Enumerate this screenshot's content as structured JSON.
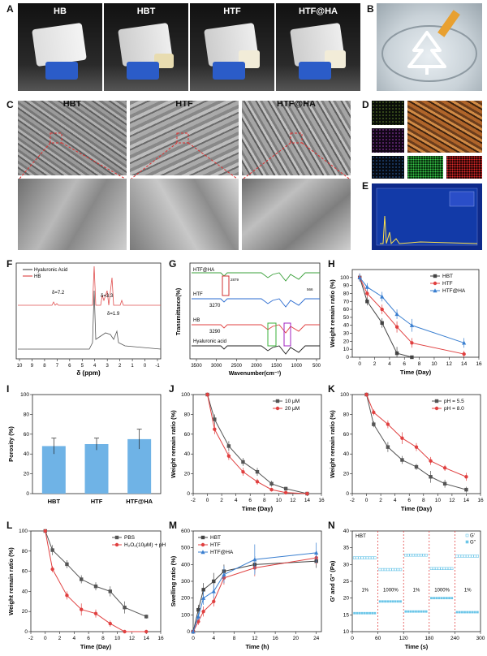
{
  "panel_labels": [
    "A",
    "B",
    "C",
    "D",
    "E",
    "F",
    "G",
    "H",
    "I",
    "J",
    "K",
    "L",
    "M",
    "N"
  ],
  "photos_A": [
    "HB",
    "HBT",
    "HTF",
    "HTF@HA"
  ],
  "sem_C": [
    "HBT",
    "HTF",
    "HTF@HA"
  ],
  "nmr_F": {
    "legend": [
      "Hyaluronic Acid",
      "HB"
    ],
    "annotations": [
      "δ=7.2",
      "δ=3.3",
      "δ=1.9"
    ],
    "xlabel": "δ (ppm)",
    "xticks": [
      "10",
      "9",
      "8",
      "7",
      "6",
      "5",
      "4",
      "3",
      "2",
      "1",
      "0",
      "-1"
    ],
    "colors": [
      "#555555",
      "#e05050"
    ]
  },
  "ftir_G": {
    "labels": [
      "HTF@HA",
      "HTF",
      "HB",
      "Hyaluronic acid"
    ],
    "annotations": [
      "2879",
      "3270",
      "3290",
      "566"
    ],
    "xlabel": "Wavenumber(cm⁻¹)",
    "ylabel": "Transmittance(%)",
    "xticks": [
      "3500",
      "3000",
      "2500",
      "2000",
      "1500",
      "1000",
      "500"
    ],
    "colors": [
      "#3aa03a",
      "#2a6bd0",
      "#e04040",
      "#222222"
    ]
  },
  "chart_data": [
    {
      "panel": "H",
      "type": "line",
      "xlabel": "Time (Day)",
      "ylabel": "Weight remain ratio (%)",
      "xlim": [
        -1,
        16
      ],
      "ylim": [
        0,
        110
      ],
      "xticks": [
        0,
        2,
        4,
        6,
        8,
        10,
        12,
        14,
        16
      ],
      "yticks": [
        0,
        10,
        20,
        30,
        40,
        50,
        60,
        70,
        80,
        90,
        100
      ],
      "legend_pos": "top-right",
      "series": [
        {
          "name": "HBT",
          "color": "#444444",
          "marker": "square",
          "x": [
            0,
            1,
            3,
            5,
            7
          ],
          "y": [
            100,
            70,
            43,
            5,
            0
          ],
          "err": [
            5,
            5,
            6,
            8,
            1
          ]
        },
        {
          "name": "HTF",
          "color": "#e04040",
          "marker": "circle",
          "x": [
            0,
            1,
            3,
            5,
            7,
            14
          ],
          "y": [
            100,
            80,
            60,
            38,
            18,
            4
          ],
          "err": [
            5,
            5,
            6,
            7,
            6,
            4
          ]
        },
        {
          "name": "HTF@HA",
          "color": "#3a7fd0",
          "marker": "triangle",
          "x": [
            0,
            1,
            3,
            5,
            7,
            14
          ],
          "y": [
            100,
            88,
            76,
            54,
            40,
            18
          ],
          "err": [
            5,
            5,
            6,
            6,
            8,
            6
          ]
        }
      ]
    },
    {
      "panel": "I",
      "type": "bar",
      "ylabel": "Porosity (%)",
      "ylim": [
        0,
        100
      ],
      "yticks": [
        0,
        20,
        40,
        60,
        80,
        100
      ],
      "categories": [
        "HBT",
        "HTF",
        "HTF@HA"
      ],
      "values": [
        48,
        50,
        55
      ],
      "err": [
        8,
        6,
        10
      ],
      "color": "#6fb3e6"
    },
    {
      "panel": "J",
      "type": "line",
      "xlabel": "Time (Day)",
      "ylabel": "Weight remain ratio (%)",
      "xlim": [
        -2,
        16
      ],
      "ylim": [
        0,
        100
      ],
      "xticks": [
        -2,
        0,
        2,
        4,
        6,
        8,
        10,
        12,
        14,
        16
      ],
      "yticks": [
        0,
        20,
        40,
        60,
        80,
        100
      ],
      "legend_pos": "top-right",
      "series": [
        {
          "name": "10 μM",
          "color": "#555555",
          "marker": "square",
          "x": [
            0,
            1,
            3,
            5,
            7,
            9,
            11,
            14
          ],
          "y": [
            100,
            75,
            48,
            32,
            22,
            10,
            5,
            0
          ],
          "err": [
            2,
            5,
            5,
            4,
            4,
            3,
            2,
            1
          ]
        },
        {
          "name": "20 μM",
          "color": "#e04040",
          "marker": "circle",
          "x": [
            0,
            1,
            3,
            5,
            7,
            9,
            11,
            14
          ],
          "y": [
            100,
            65,
            38,
            22,
            12,
            4,
            1,
            0
          ],
          "err": [
            2,
            5,
            4,
            4,
            3,
            2,
            1,
            1
          ]
        }
      ]
    },
    {
      "panel": "K",
      "type": "line",
      "xlabel": "Time (Day)",
      "ylabel": "Weight remain ratio (%)",
      "xlim": [
        -2,
        16
      ],
      "ylim": [
        0,
        100
      ],
      "xticks": [
        -2,
        0,
        2,
        4,
        6,
        8,
        10,
        12,
        14,
        16
      ],
      "yticks": [
        0,
        20,
        40,
        60,
        80,
        100
      ],
      "legend_pos": "top-right",
      "series": [
        {
          "name": "pH = 5.5",
          "color": "#555555",
          "marker": "square",
          "x": [
            0,
            1,
            3,
            5,
            7,
            9,
            11,
            14
          ],
          "y": [
            100,
            70,
            47,
            34,
            27,
            17,
            10,
            4
          ],
          "err": [
            2,
            3,
            5,
            4,
            3,
            6,
            4,
            3
          ]
        },
        {
          "name": "pH = 8.0",
          "color": "#e04040",
          "marker": "circle",
          "x": [
            0,
            1,
            3,
            5,
            7,
            9,
            11,
            14
          ],
          "y": [
            100,
            82,
            70,
            56,
            47,
            33,
            26,
            17
          ],
          "err": [
            2,
            3,
            4,
            6,
            4,
            4,
            3,
            4
          ]
        }
      ]
    },
    {
      "panel": "L",
      "type": "line",
      "xlabel": "Time (Day)",
      "ylabel": "Weight remain ratio (%)",
      "xlim": [
        -2,
        16
      ],
      "ylim": [
        0,
        100
      ],
      "xticks": [
        -2,
        0,
        2,
        4,
        6,
        8,
        10,
        12,
        14,
        16
      ],
      "yticks": [
        0,
        20,
        40,
        60,
        80,
        100
      ],
      "legend_pos": "top-right",
      "series": [
        {
          "name": "PBS",
          "color": "#555555",
          "marker": "square",
          "x": [
            0,
            1,
            3,
            5,
            7,
            9,
            11,
            14
          ],
          "y": [
            100,
            81,
            67,
            52,
            45,
            40,
            24,
            15
          ],
          "err": [
            1,
            5,
            4,
            4,
            4,
            5,
            6,
            2
          ]
        },
        {
          "name": "H₂O₂(10μM) + pH(5.5)",
          "color": "#e04040",
          "marker": "circle",
          "x": [
            0,
            1,
            3,
            5,
            7,
            9,
            11,
            14
          ],
          "y": [
            100,
            62,
            36,
            22,
            18,
            8,
            0,
            0
          ],
          "err": [
            1,
            3,
            4,
            6,
            4,
            3,
            1,
            1
          ]
        }
      ]
    },
    {
      "panel": "M",
      "type": "line",
      "xlabel": "Time (h)",
      "ylabel": "Swelling ratio (%)",
      "xlim": [
        0,
        25
      ],
      "ylim": [
        0,
        600
      ],
      "xticks": [
        0,
        4,
        8,
        12,
        16,
        20,
        24
      ],
      "yticks": [
        0,
        100,
        200,
        300,
        400,
        500,
        600
      ],
      "legend_pos": "top-left",
      "series": [
        {
          "name": "HBT",
          "color": "#444444",
          "marker": "square",
          "x": [
            0,
            1,
            2,
            4,
            6,
            12,
            24
          ],
          "y": [
            0,
            130,
            250,
            300,
            360,
            400,
            420
          ],
          "err": [
            0,
            30,
            40,
            50,
            40,
            50,
            40
          ]
        },
        {
          "name": "HTF",
          "color": "#e04040",
          "marker": "circle",
          "x": [
            0,
            1,
            2,
            4,
            6,
            12,
            24
          ],
          "y": [
            0,
            60,
            120,
            180,
            320,
            380,
            440
          ],
          "err": [
            0,
            20,
            30,
            30,
            40,
            50,
            40
          ]
        },
        {
          "name": "HTF@HA",
          "color": "#3a7fd0",
          "marker": "triangle",
          "x": [
            0,
            1,
            2,
            4,
            6,
            12,
            24
          ],
          "y": [
            0,
            90,
            200,
            240,
            340,
            430,
            470
          ],
          "err": [
            0,
            20,
            40,
            40,
            50,
            90,
            60
          ]
        }
      ]
    },
    {
      "panel": "N",
      "type": "scatter",
      "title": "HBT",
      "xlabel": "Time (s)",
      "ylabel": "G' and G'' (Pa)",
      "xlim": [
        0,
        300
      ],
      "ylim": [
        10,
        40
      ],
      "xticks": [
        0,
        60,
        120,
        180,
        240,
        300
      ],
      "yticks": [
        10,
        15,
        20,
        25,
        30,
        35,
        40
      ],
      "legend_pos": "top-right",
      "strain_labels": [
        "1%",
        "1000%",
        "1%",
        "1000%",
        "1%"
      ],
      "boundaries": [
        60,
        120,
        180,
        240
      ],
      "series": [
        {
          "name": "G'",
          "color": "#6cc6e8",
          "segments": [
            [
              0,
              60,
              32
            ],
            [
              60,
              120,
              28.5
            ],
            [
              120,
              180,
              32.8
            ],
            [
              180,
              240,
              28.8
            ],
            [
              240,
              300,
              32.5
            ]
          ]
        },
        {
          "name": "G''",
          "color": "#6cc6e8",
          "segments": [
            [
              0,
              60,
              15.5
            ],
            [
              60,
              120,
              19
            ],
            [
              120,
              180,
              16
            ],
            [
              180,
              240,
              20
            ],
            [
              240,
              300,
              15.8
            ]
          ]
        }
      ]
    }
  ]
}
